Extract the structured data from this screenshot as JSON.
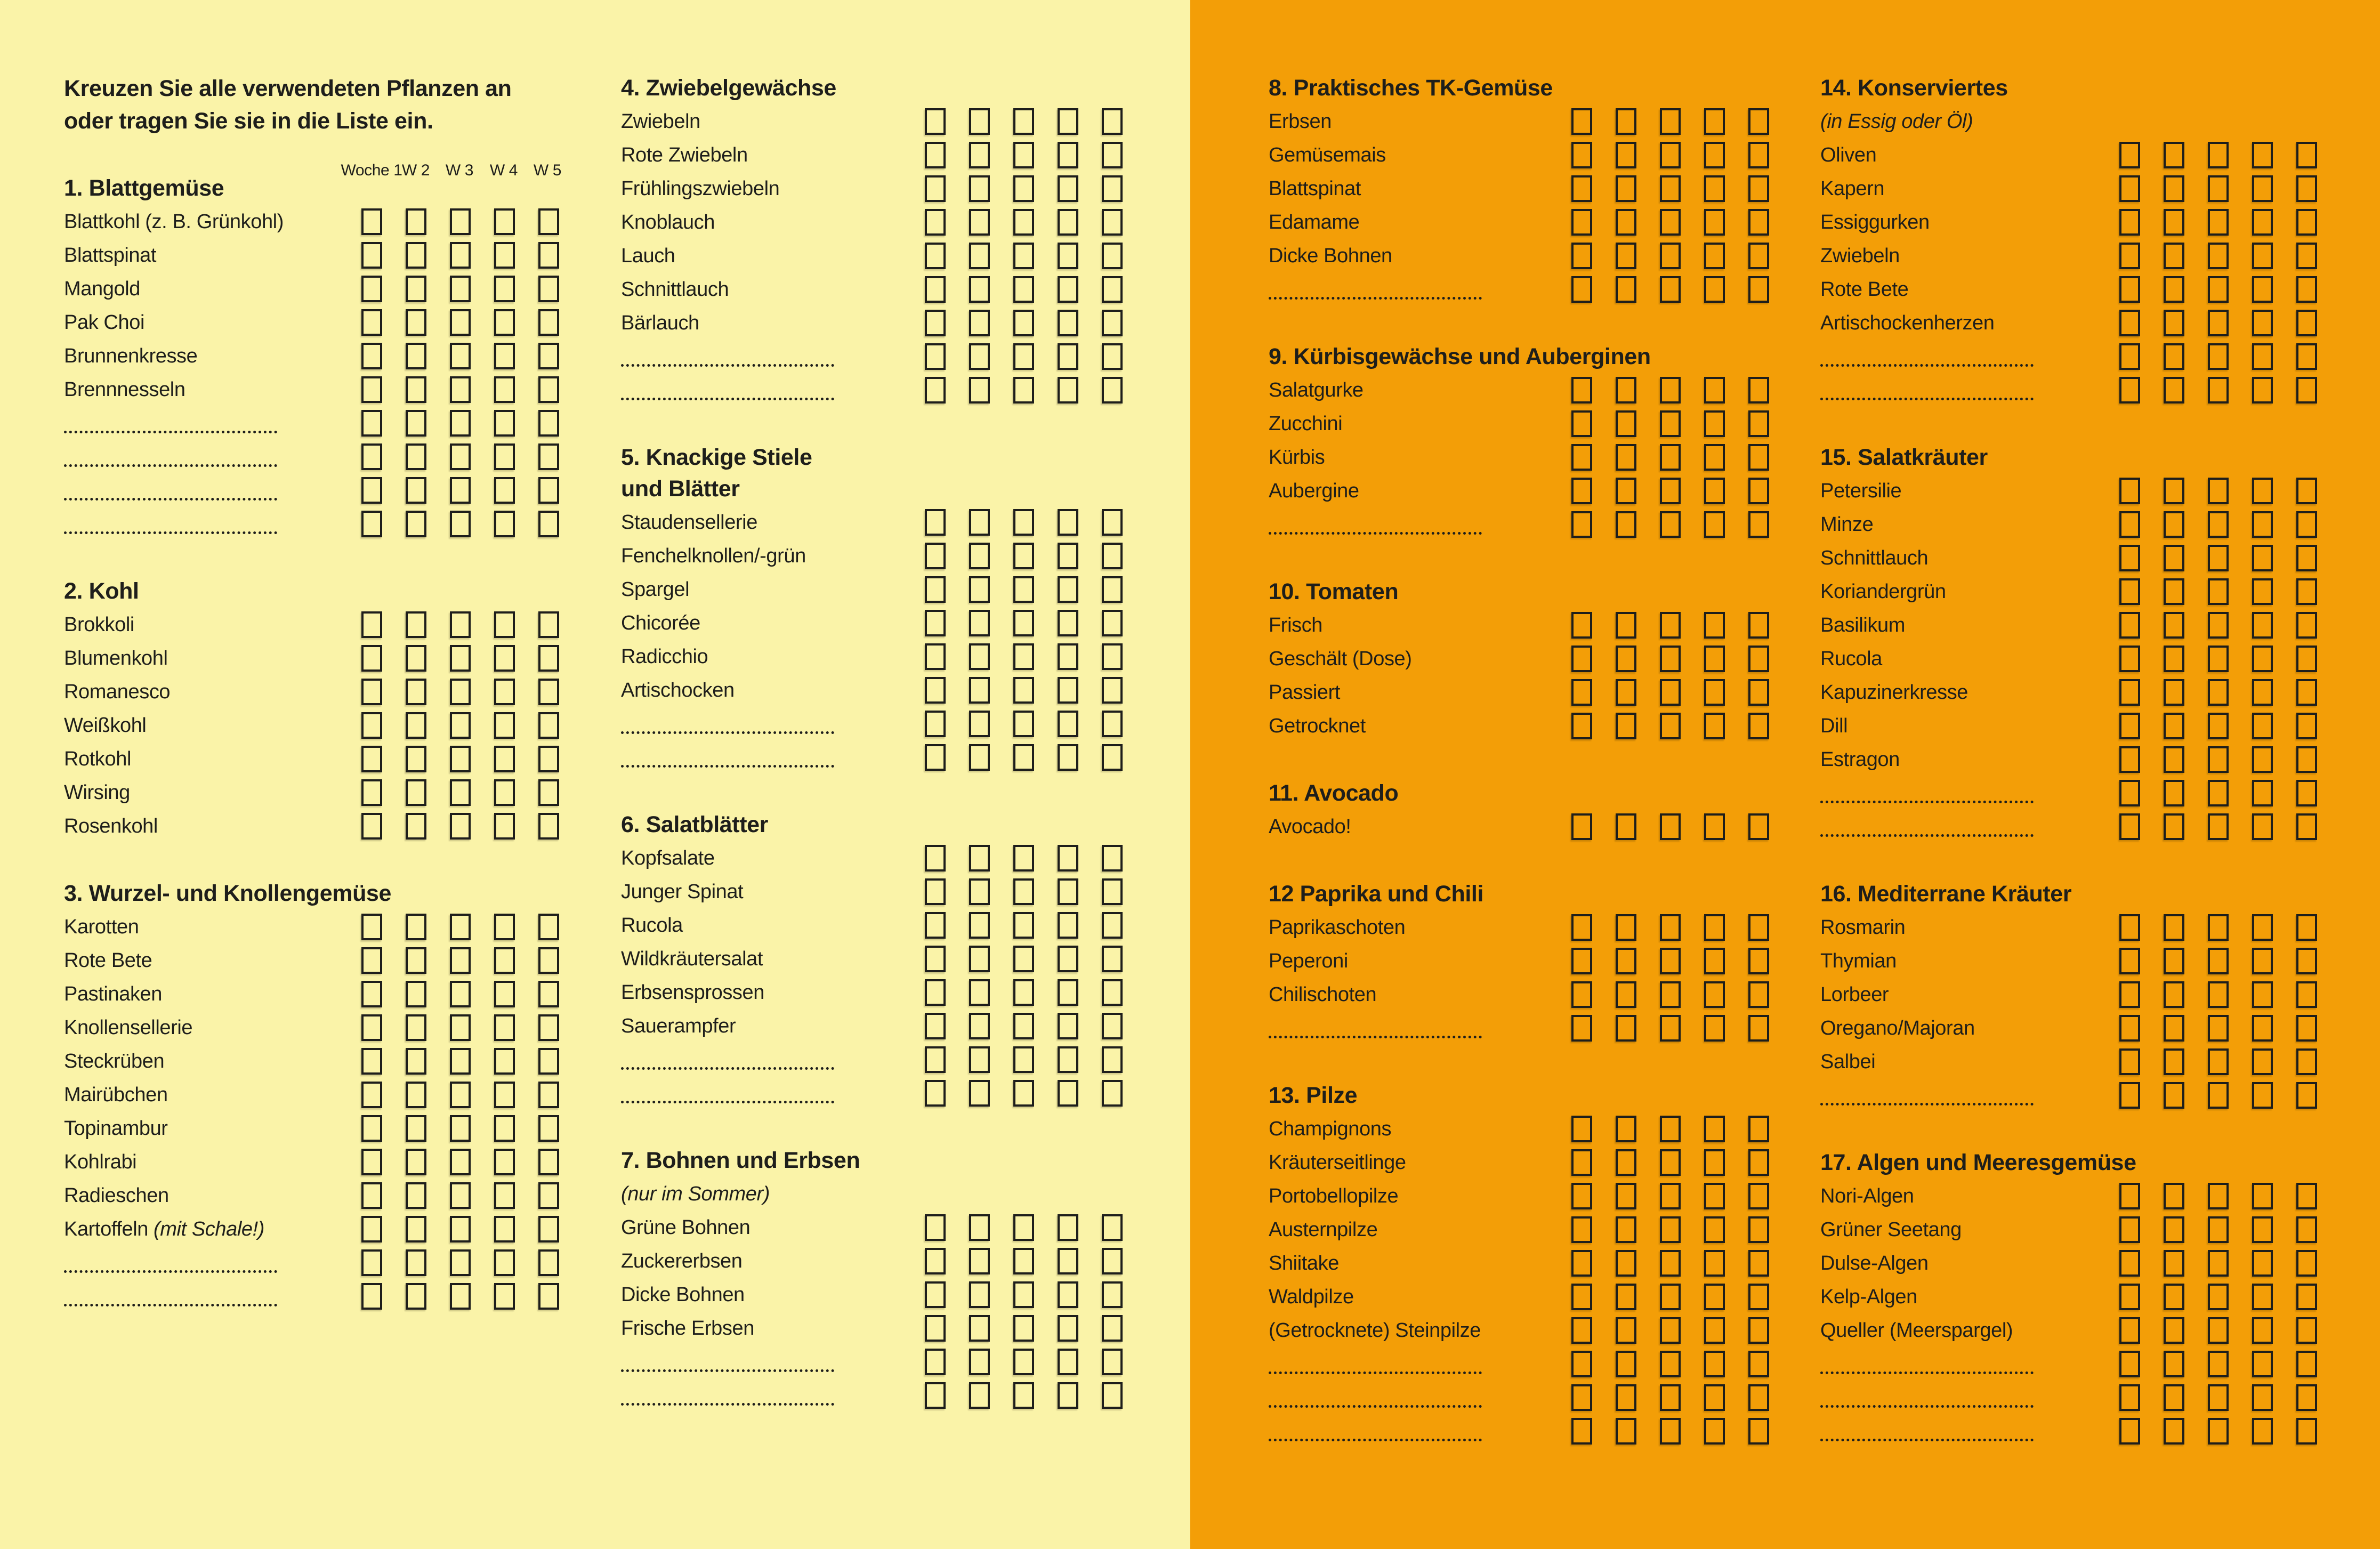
{
  "page": {
    "intro_line1": "Kreuzen Sie alle verwendeten Pflanzen an",
    "intro_line2": "oder tragen Sie sie in die Liste ein.",
    "week_labels": [
      "Woche 1",
      "W 2",
      "W 3",
      "W 4",
      "W 5"
    ],
    "colors": {
      "paper_left": "#FAF3A8",
      "paper_right": "#F39E07",
      "ink": "#1E1E1B"
    }
  },
  "columns": [
    {
      "sections": [
        {
          "title": "1. Blattgemüse",
          "items": [
            {
              "label": "Blattkohl (z. B. Grünkohl)"
            },
            {
              "label": "Blattspinat"
            },
            {
              "label": "Mangold"
            },
            {
              "label": "Pak Choi"
            },
            {
              "label": "Brunnenkresse"
            },
            {
              "label": "Brennnesseln"
            },
            {
              "blank": true
            },
            {
              "blank": true
            },
            {
              "blank": true
            },
            {
              "blank": true
            }
          ]
        },
        {
          "title": "2. Kohl",
          "items": [
            {
              "label": "Brokkoli"
            },
            {
              "label": "Blumenkohl"
            },
            {
              "label": "Romanesco"
            },
            {
              "label": "Weißkohl"
            },
            {
              "label": "Rotkohl"
            },
            {
              "label": "Wirsing"
            },
            {
              "label": "Rosenkohl"
            }
          ]
        },
        {
          "title": "3. Wurzel- und Knollengemüse",
          "items": [
            {
              "label": "Karotten"
            },
            {
              "label": "Rote Bete"
            },
            {
              "label": "Pastinaken"
            },
            {
              "label": "Knollensellerie"
            },
            {
              "label": "Steckrüben"
            },
            {
              "label": "Mairübchen"
            },
            {
              "label": "Topinambur"
            },
            {
              "label": "Kohlrabi"
            },
            {
              "label": "Radieschen"
            },
            {
              "label": "Kartoffeln",
              "italic": "(mit Schale!)"
            },
            {
              "blank": true
            },
            {
              "blank": true
            }
          ]
        }
      ]
    },
    {
      "sections": [
        {
          "title": "4. Zwiebelgewächse",
          "items": [
            {
              "label": "Zwiebeln"
            },
            {
              "label": "Rote Zwiebeln"
            },
            {
              "label": "Frühlingszwiebeln"
            },
            {
              "label": "Knoblauch"
            },
            {
              "label": "Lauch"
            },
            {
              "label": "Schnittlauch"
            },
            {
              "label": "Bärlauch"
            },
            {
              "blank": true
            },
            {
              "blank": true
            }
          ]
        },
        {
          "title": "5. Knackige Stiele",
          "title2": "und Blätter",
          "items": [
            {
              "label": "Staudensellerie"
            },
            {
              "label": "Fenchelknollen/-grün"
            },
            {
              "label": "Spargel"
            },
            {
              "label": "Chicorée"
            },
            {
              "label": "Radicchio"
            },
            {
              "label": "Artischocken"
            },
            {
              "blank": true
            },
            {
              "blank": true
            }
          ]
        },
        {
          "title": "6. Salatblätter",
          "items": [
            {
              "label": "Kopfsalate"
            },
            {
              "label": "Junger Spinat"
            },
            {
              "label": "Rucola"
            },
            {
              "label": "Wildkräutersalat"
            },
            {
              "label": "Erbsensprossen"
            },
            {
              "label": "Sauerampfer"
            },
            {
              "blank": true
            },
            {
              "blank": true
            }
          ]
        },
        {
          "title": "7. Bohnen und Erbsen",
          "subtitle": "(nur im Sommer)",
          "items": [
            {
              "label": "Grüne Bohnen"
            },
            {
              "label": "Zuckererbsen"
            },
            {
              "label": "Dicke Bohnen"
            },
            {
              "label": "Frische Erbsen"
            },
            {
              "blank": true
            },
            {
              "blank": true
            }
          ]
        }
      ]
    },
    {
      "sections": [
        {
          "title": "8. Praktisches TK-Gemüse",
          "items": [
            {
              "label": "Erbsen"
            },
            {
              "label": "Gemüsemais"
            },
            {
              "label": "Blattspinat"
            },
            {
              "label": "Edamame"
            },
            {
              "label": "Dicke Bohnen"
            },
            {
              "blank": true
            }
          ]
        },
        {
          "title": "9. Kürbisgewächse und Auberginen",
          "items": [
            {
              "label": "Salatgurke"
            },
            {
              "label": "Zucchini"
            },
            {
              "label": "Kürbis"
            },
            {
              "label": "Aubergine"
            },
            {
              "blank": true
            }
          ]
        },
        {
          "title": "10. Tomaten",
          "items": [
            {
              "label": "Frisch"
            },
            {
              "label": "Geschält (Dose)"
            },
            {
              "label": "Passiert"
            },
            {
              "label": "Getrocknet"
            }
          ]
        },
        {
          "title": "11. Avocado",
          "items": [
            {
              "label": "Avocado!"
            }
          ]
        },
        {
          "title": "12 Paprika und Chili",
          "items": [
            {
              "label": "Paprikaschoten"
            },
            {
              "label": "Peperoni"
            },
            {
              "label": "Chilischoten"
            },
            {
              "blank": true
            }
          ]
        },
        {
          "title": "13. Pilze",
          "items": [
            {
              "label": "Champignons"
            },
            {
              "label": "Kräuterseitlinge"
            },
            {
              "label": "Portobellopilze"
            },
            {
              "label": "Austernpilze"
            },
            {
              "label": "Shiitake"
            },
            {
              "label": "Waldpilze"
            },
            {
              "label": "(Getrocknete) Steinpilze"
            },
            {
              "blank": true
            },
            {
              "blank": true
            },
            {
              "blank": true
            }
          ]
        }
      ]
    },
    {
      "sections": [
        {
          "title": "14. Konserviertes",
          "subtitle": "(in Essig oder Öl)",
          "items": [
            {
              "label": "Oliven"
            },
            {
              "label": "Kapern"
            },
            {
              "label": "Essiggurken"
            },
            {
              "label": "Zwiebeln"
            },
            {
              "label": "Rote Bete"
            },
            {
              "label": "Artischockenherzen"
            },
            {
              "blank": true
            },
            {
              "blank": true
            }
          ]
        },
        {
          "title": "15. Salatkräuter",
          "items": [
            {
              "label": "Petersilie"
            },
            {
              "label": "Minze"
            },
            {
              "label": "Schnittlauch"
            },
            {
              "label": "Koriandergrün"
            },
            {
              "label": "Basilikum"
            },
            {
              "label": "Rucola"
            },
            {
              "label": "Kapuzinerkresse"
            },
            {
              "label": "Dill"
            },
            {
              "label": "Estragon"
            },
            {
              "blank": true
            },
            {
              "blank": true
            }
          ]
        },
        {
          "title": "16. Mediterrane Kräuter",
          "items": [
            {
              "label": "Rosmarin"
            },
            {
              "label": "Thymian"
            },
            {
              "label": "Lorbeer"
            },
            {
              "label": "Oregano/Majoran"
            },
            {
              "label": "Salbei"
            },
            {
              "blank": true
            }
          ]
        },
        {
          "title": "17. Algen und Meeresgemüse",
          "items": [
            {
              "label": "Nori-Algen"
            },
            {
              "label": "Grüner Seetang"
            },
            {
              "label": "Dulse-Algen"
            },
            {
              "label": "Kelp-Algen"
            },
            {
              "label": "Queller (Meerspargel)"
            },
            {
              "blank": true
            },
            {
              "blank": true
            },
            {
              "blank": true
            }
          ]
        }
      ]
    }
  ]
}
